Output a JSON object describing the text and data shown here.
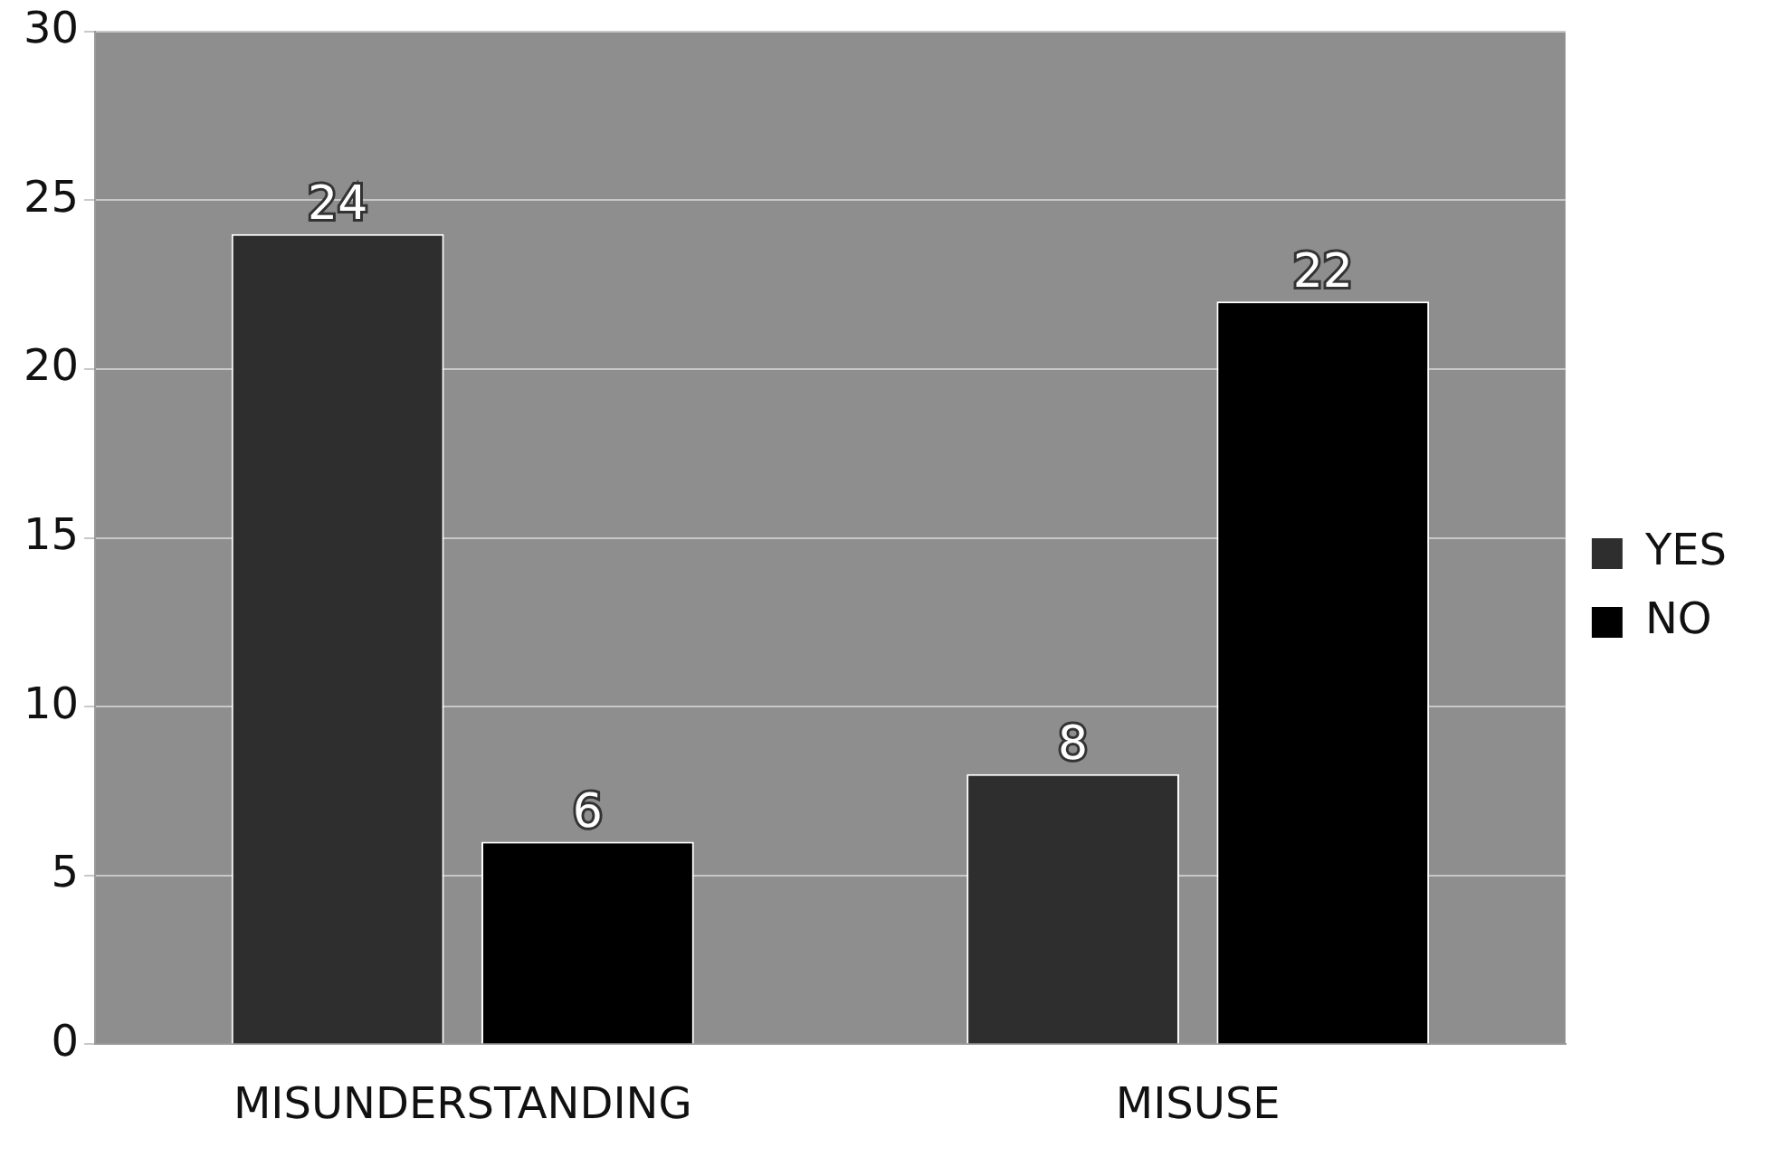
{
  "chart_data": {
    "type": "bar",
    "categories": [
      "MISUNDERSTANDING",
      "MISUSE"
    ],
    "series": [
      {
        "name": "YES",
        "color": "#2e2e2e",
        "values": [
          24,
          8
        ]
      },
      {
        "name": "NO",
        "color": "#000000",
        "values": [
          6,
          22
        ]
      }
    ],
    "ylim": [
      0,
      30
    ],
    "yticks": [
      0,
      5,
      10,
      15,
      20,
      25,
      30
    ],
    "grid": "y",
    "legend": "right",
    "data_labels": true
  }
}
